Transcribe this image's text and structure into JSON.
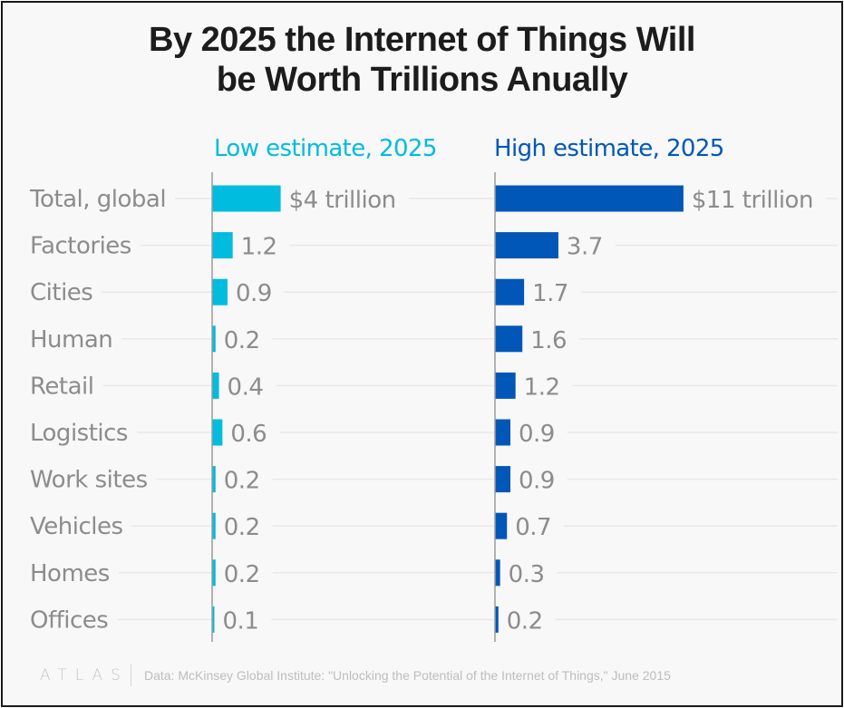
{
  "title": "By 2025 the Internet of Things Will be Worth Trillions Anually",
  "title_lines": [
    "By 2025 the Internet of Things Will",
    "be Worth Trillions Anually"
  ],
  "footer": {
    "logo": "ATLAS",
    "source": "Data: McKinsey Global Institute: \"Unlocking the Potential of the Internet of Things,\" June 2015"
  },
  "colors": {
    "low": "#00bcde",
    "high": "#0057b8",
    "label": "#8c8c8c",
    "gridline": "#e8e8e8",
    "axis": "#9a9a9a"
  },
  "chart_data": {
    "type": "bar",
    "orientation": "horizontal",
    "title": "By 2025 the Internet of Things Will be Worth Trillions Anually",
    "unit": "trillion USD",
    "categories": [
      "Total, global",
      "Factories",
      "Cities",
      "Human",
      "Retail",
      "Logistics",
      "Work sites",
      "Vehicles",
      "Homes",
      "Offices"
    ],
    "series": [
      {
        "name": "Low estimate, 2025",
        "color": "#00bcde",
        "values": [
          4,
          1.2,
          0.9,
          0.2,
          0.4,
          0.6,
          0.2,
          0.2,
          0.2,
          0.1
        ],
        "labels": [
          "$4 trillion",
          "1.2",
          "0.9",
          "0.2",
          "0.4",
          "0.6",
          "0.2",
          "0.2",
          "0.2",
          "0.1"
        ]
      },
      {
        "name": "High estimate, 2025",
        "color": "#0057b8",
        "values": [
          11,
          3.7,
          1.7,
          1.6,
          1.2,
          0.9,
          0.9,
          0.7,
          0.3,
          0.2
        ],
        "labels": [
          "$11 trillion",
          "3.7",
          "1.7",
          "1.6",
          "1.2",
          "0.9",
          "0.9",
          "0.7",
          "0.3",
          "0.2"
        ]
      }
    ],
    "xlabel": "",
    "ylabel": "",
    "grid": true,
    "legend": "top (series headers above each panel)"
  }
}
